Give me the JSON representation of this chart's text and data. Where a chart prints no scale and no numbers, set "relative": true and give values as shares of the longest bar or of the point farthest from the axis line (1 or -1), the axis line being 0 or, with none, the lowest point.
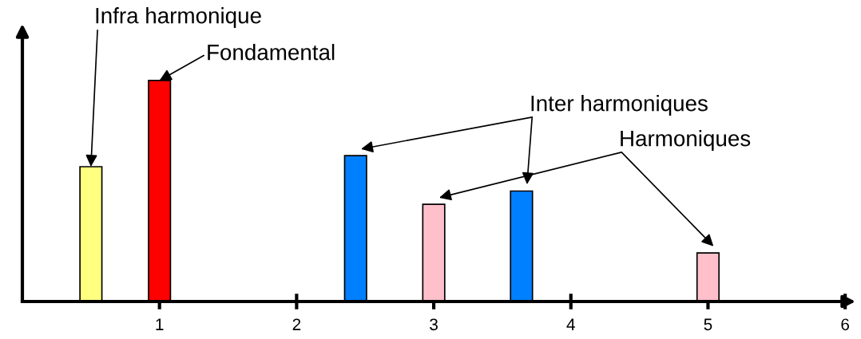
{
  "chart_data": {
    "type": "bar",
    "relative": true,
    "x": [
      0.5,
      1,
      2.43,
      3,
      3.64,
      5
    ],
    "values": [
      0.61,
      1,
      0.66,
      0.44,
      0.5,
      0.22
    ],
    "colors": [
      "#ffff80",
      "#ff0000",
      "#0080ff",
      "#ffc0cb",
      "#0080ff",
      "#ffc0cb"
    ],
    "xlim": [
      0,
      6.04
    ],
    "xticks": [
      1,
      2,
      3,
      4,
      5,
      6
    ],
    "annotations": [
      {
        "text": "Infra harmonique",
        "x": 0.5,
        "y": 0.61
      },
      {
        "text": "Fondamental",
        "x": 1,
        "y": 1
      },
      "Inter harmoniques",
      "Harmoniques"
    ],
    "grid": false
  }
}
